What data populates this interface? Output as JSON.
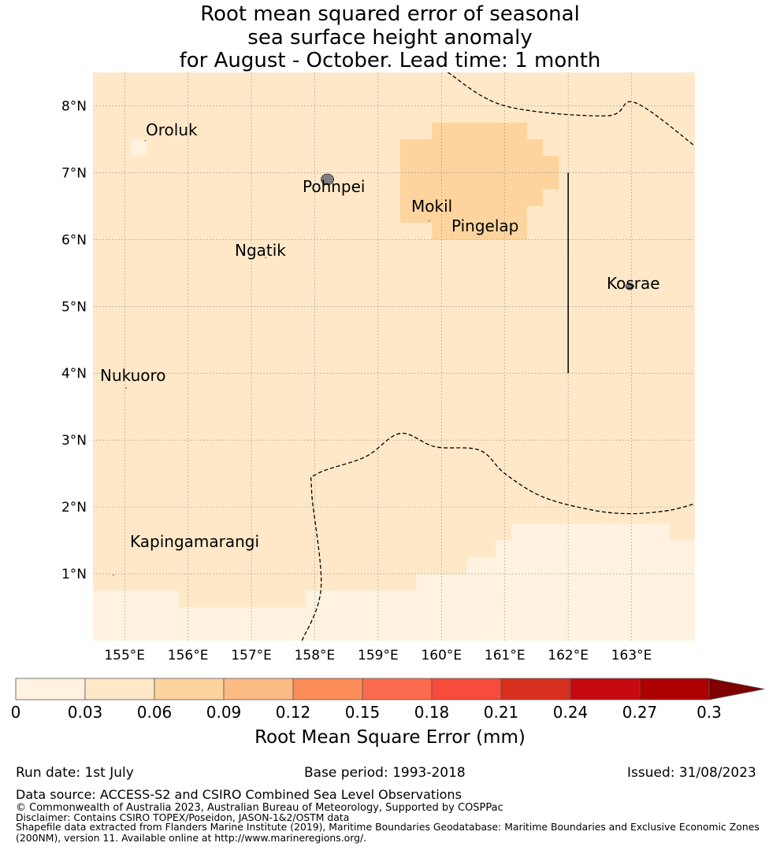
{
  "title": {
    "line1": "Root mean squared error of seasonal",
    "line2": "sea surface height anomaly",
    "line3": "for August - October. Lead time: 1 month"
  },
  "map": {
    "lon_range": [
      154.5,
      164.0
    ],
    "lat_range": [
      0.0,
      8.5
    ],
    "lon_ticks": [
      155,
      156,
      157,
      158,
      159,
      160,
      161,
      162,
      163
    ],
    "lon_tick_labels": [
      "155°E",
      "156°E",
      "157°E",
      "158°E",
      "159°E",
      "160°E",
      "161°E",
      "162°E",
      "163°E"
    ],
    "lat_ticks": [
      1,
      2,
      3,
      4,
      5,
      6,
      7,
      8
    ],
    "lat_tick_labels": [
      "1°N",
      "2°N",
      "3°N",
      "4°N",
      "5°N",
      "6°N",
      "7°N",
      "8°N"
    ],
    "background_bin_color": "#fee8c8",
    "grid": true,
    "cells": [
      {
        "lon": [
          155.1,
          155.35
        ],
        "lat": [
          7.25,
          7.5
        ],
        "color": "#fff2e0"
      },
      {
        "lon": [
          154.5,
          155.85
        ],
        "lat": [
          0.0,
          0.75
        ],
        "color": "#fff2e0"
      },
      {
        "lon": [
          155.85,
          157.85
        ],
        "lat": [
          0.0,
          0.5
        ],
        "color": "#fff2e0"
      },
      {
        "lon": [
          157.85,
          159.6
        ],
        "lat": [
          0.0,
          0.75
        ],
        "color": "#fff2e0"
      },
      {
        "lon": [
          159.6,
          160.4
        ],
        "lat": [
          0.0,
          1.0
        ],
        "color": "#fff2e0"
      },
      {
        "lon": [
          160.4,
          160.85
        ],
        "lat": [
          0.0,
          1.25
        ],
        "color": "#fff2e0"
      },
      {
        "lon": [
          160.85,
          161.1
        ],
        "lat": [
          0.0,
          1.5
        ],
        "color": "#fff2e0"
      },
      {
        "lon": [
          161.1,
          163.6
        ],
        "lat": [
          0.0,
          1.75
        ],
        "color": "#fff2e0"
      },
      {
        "lon": [
          163.6,
          164.0
        ],
        "lat": [
          0.0,
          1.5
        ],
        "color": "#fff2e0"
      },
      {
        "lon": [
          159.85,
          161.35
        ],
        "lat": [
          7.25,
          7.75
        ],
        "color": "#fdd49e"
      },
      {
        "lon": [
          159.35,
          161.6
        ],
        "lat": [
          6.5,
          7.5
        ],
        "color": "#fdd49e"
      },
      {
        "lon": [
          159.35,
          161.85
        ],
        "lat": [
          6.75,
          7.25
        ],
        "color": "#fdd49e"
      },
      {
        "lon": [
          161.6,
          161.85
        ],
        "lat": [
          6.75,
          7.25
        ],
        "color": "#fdd49e"
      },
      {
        "lon": [
          159.35,
          161.35
        ],
        "lat": [
          6.25,
          6.5
        ],
        "color": "#fdd49e"
      },
      {
        "lon": [
          159.85,
          161.35
        ],
        "lat": [
          6.0,
          6.25
        ],
        "color": "#fdd49e"
      }
    ],
    "eez_boundaries": [
      [
        [
          160.1,
          8.5
        ],
        [
          161.0,
          8.0
        ],
        [
          162.6,
          7.85
        ],
        [
          163.05,
          8.05
        ],
        [
          164.0,
          7.4
        ]
      ],
      [
        [
          157.8,
          0.0
        ],
        [
          158.1,
          0.8
        ],
        [
          157.95,
          2.25
        ],
        [
          158.05,
          2.5
        ],
        [
          158.8,
          2.75
        ],
        [
          159.35,
          3.1
        ],
        [
          159.9,
          2.9
        ],
        [
          160.6,
          2.85
        ],
        [
          161.0,
          2.5
        ],
        [
          161.6,
          2.15
        ],
        [
          162.4,
          1.95
        ],
        [
          163.0,
          1.9
        ],
        [
          163.6,
          1.95
        ],
        [
          164.0,
          2.05
        ]
      ]
    ],
    "divider_line": [
      [
        162.0,
        7.0
      ],
      [
        162.0,
        4.0
      ]
    ],
    "islands": [
      {
        "name": "Oroluk",
        "lon": 155.3,
        "lat": 7.55
      },
      {
        "name": "Pohnpei",
        "lon": 158.2,
        "lat": 6.9,
        "shape": "blob"
      },
      {
        "name": "Mokil",
        "lon": 159.78,
        "lat": 6.35
      },
      {
        "name": "Pingelap",
        "lon": 160.7,
        "lat": 6.2
      },
      {
        "name": "Ngatik",
        "lon": 157.2,
        "lat": 5.8
      },
      {
        "name": "Kosrae",
        "lon": 162.97,
        "lat": 5.3,
        "shape": "blob"
      },
      {
        "name": "Nukuoro",
        "lon": 155.0,
        "lat": 3.85
      },
      {
        "name": "Kapingamarangi",
        "lon": 154.8,
        "lat": 1.05
      }
    ]
  },
  "colorbar": {
    "boundaries": [
      0,
      0.03,
      0.06,
      0.09,
      0.12,
      0.15,
      0.18,
      0.21,
      0.24,
      0.27,
      0.3
    ],
    "tick_labels": [
      "0",
      "0.03",
      "0.06",
      "0.09",
      "0.12",
      "0.15",
      "0.18",
      "0.21",
      "0.24",
      "0.27",
      "0.3"
    ],
    "colors": [
      "#fff2e0",
      "#fee8c8",
      "#fdd49e",
      "#fdbb84",
      "#fc8d59",
      "#fc6b4d",
      "#f74c3c",
      "#d7301f",
      "#c70a0f",
      "#ad0000"
    ],
    "extend_color": "#7f0000",
    "label": "Root Mean Square Error (mm)"
  },
  "footer": {
    "run_date": "Run date: 1st July",
    "base_period": "Base period: 1993-2018",
    "issued": "Issued: 31/08/2023",
    "data_source": "Data source: ACCESS-S2 and CSIRO Combined Sea Level Observations",
    "copyright": "© Commonwealth of Australia 2023, Australian Bureau of Meteorology, Supported by COSPPac",
    "disclaimer": "Disclaimer: Contains CSIRO TOPEX/Poseidon, JASON-1&2/OSTM data",
    "shapefile_line1": "Shapefile data extracted from Flanders Marine Institute (2019), Maritime Boundaries Geodatabase: Maritime Boundaries and Exclusive Economic Zones",
    "shapefile_line2": "(200NM), version 11. Available online at http://www.marineregions.org/."
  }
}
